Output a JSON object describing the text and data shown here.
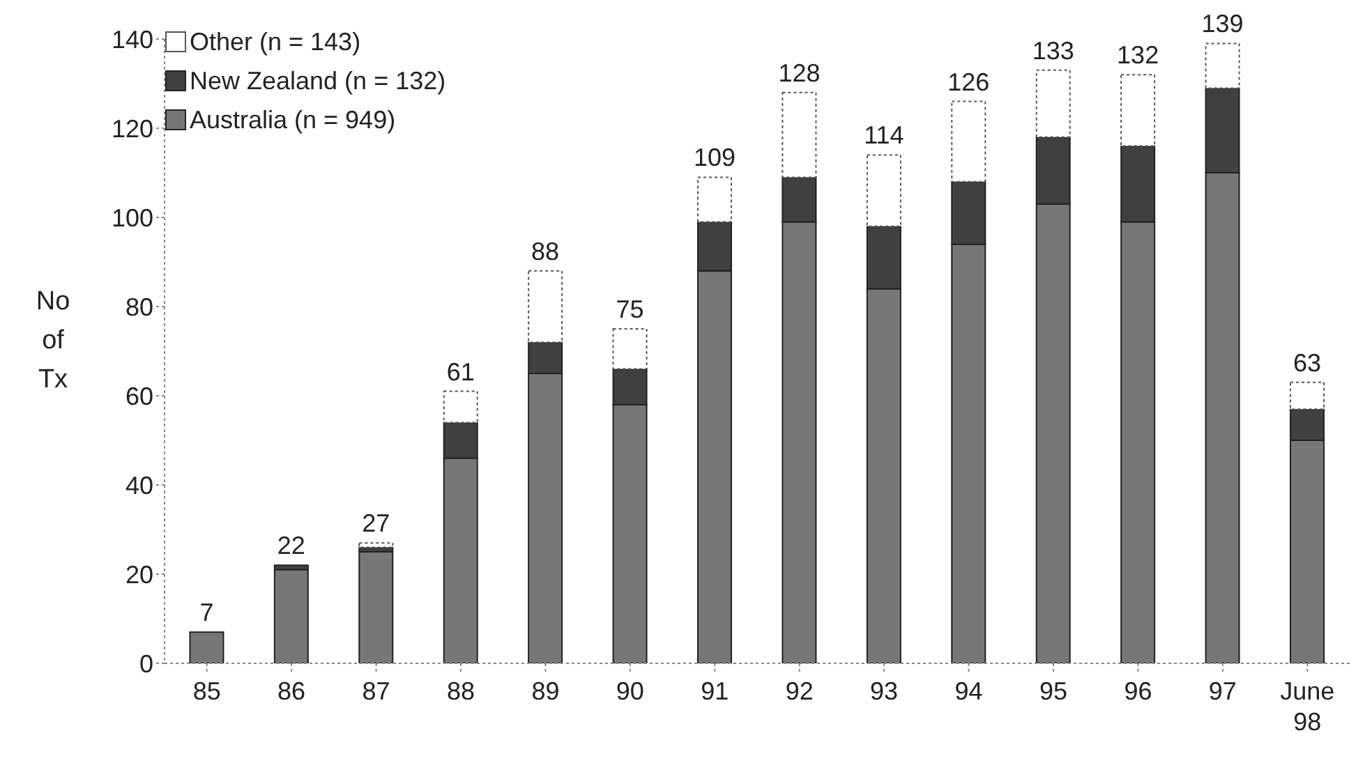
{
  "chart_data": {
    "type": "bar",
    "stacked": true,
    "ylabel": "No of Tx",
    "categories": [
      "85",
      "86",
      "87",
      "88",
      "89",
      "90",
      "91",
      "92",
      "93",
      "94",
      "95",
      "96",
      "97",
      "June 98"
    ],
    "series": [
      {
        "name": "Australia (n = 949)",
        "color": "#777777",
        "values": [
          7,
          21,
          25,
          46,
          65,
          58,
          88,
          99,
          84,
          94,
          103,
          99,
          110,
          50
        ]
      },
      {
        "name": "New Zealand (n = 132)",
        "color": "#404040",
        "values": [
          0,
          1,
          1,
          8,
          7,
          8,
          11,
          10,
          14,
          14,
          15,
          17,
          19,
          7
        ]
      },
      {
        "name": "Other (n = 143)",
        "color": "#ffffff",
        "values": [
          0,
          0,
          1,
          7,
          16,
          9,
          10,
          19,
          16,
          18,
          15,
          16,
          10,
          6
        ]
      }
    ],
    "totals": [
      "7",
      "22",
      "27",
      "61",
      "88",
      "75",
      "109",
      "128",
      "114",
      "126",
      "133",
      "132",
      "139",
      "63"
    ],
    "ylim": [
      0,
      140
    ],
    "yticks": [
      0,
      20,
      40,
      60,
      80,
      100,
      120,
      140
    ],
    "grid": false,
    "legend": "top left"
  }
}
